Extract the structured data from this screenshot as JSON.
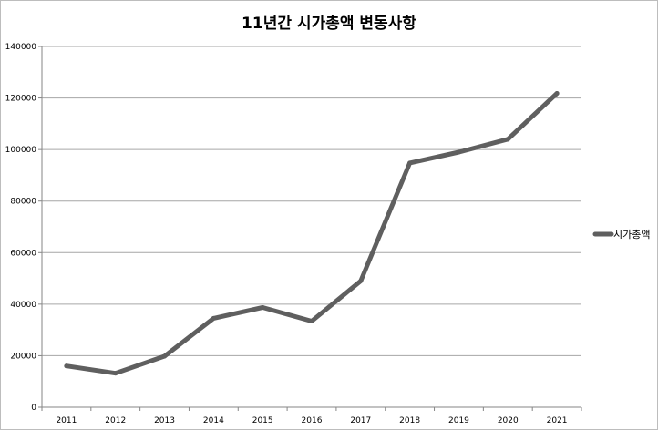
{
  "chart_data": {
    "type": "line",
    "title": "11년간 시가총액 변동사항",
    "xlabel": "",
    "ylabel": "",
    "categories": [
      "2011",
      "2012",
      "2013",
      "2014",
      "2015",
      "2016",
      "2017",
      "2018",
      "2019",
      "2020",
      "2021"
    ],
    "series": [
      {
        "name": "시가총액",
        "values": [
          16000,
          13200,
          19800,
          34500,
          38700,
          33400,
          49000,
          94800,
          99000,
          104000,
          121800
        ],
        "color": "#5f5f5f"
      }
    ],
    "ylim": [
      0,
      140000
    ],
    "yticks": [
      0,
      20000,
      40000,
      60000,
      80000,
      100000,
      120000,
      140000
    ],
    "grid": true,
    "legend": "right"
  }
}
